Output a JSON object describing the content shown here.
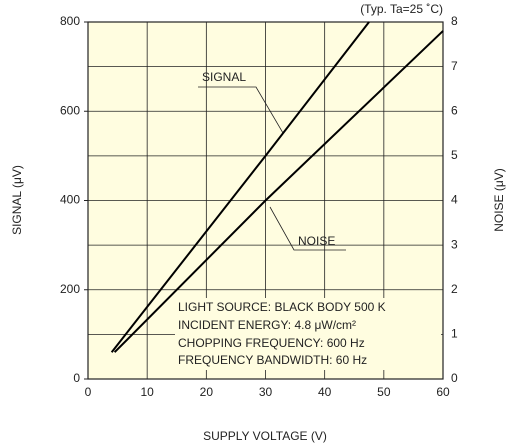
{
  "chart_data": {
    "type": "line",
    "annotation": "(Typ. Ta=25 ˚C)",
    "xlabel": "SUPPLY VOLTAGE (V)",
    "ylabel": "SIGNAL (μV)",
    "y2label": "NOISE (μV)",
    "xlim": [
      0,
      60
    ],
    "xticks": [
      0,
      10,
      20,
      30,
      40,
      50,
      60
    ],
    "ylim": [
      0,
      800
    ],
    "yticks": [
      0,
      200,
      400,
      600,
      800
    ],
    "y2lim": [
      0,
      8
    ],
    "y2ticks": [
      0,
      1,
      2,
      3,
      4,
      5,
      6,
      7,
      8
    ],
    "grid": true,
    "background": "#fffde0",
    "series": [
      {
        "name": "SIGNAL",
        "color": "#000000",
        "x": [
          4,
          30,
          47.5
        ],
        "values": [
          60,
          500,
          800
        ]
      },
      {
        "name": "NOISE",
        "color": "#000000",
        "axis": "y2",
        "x": [
          4.5,
          30,
          60
        ],
        "values": [
          0.6,
          4,
          7.8
        ]
      }
    ],
    "notes": [
      "LIGHT SOURCE: BLACK BODY 500 K",
      "INCIDENT ENERGY: 4.8 μW/cm²",
      "CHOPPING FREQUENCY: 600 Hz",
      "FREQUENCY BANDWIDTH: 60 Hz"
    ]
  }
}
